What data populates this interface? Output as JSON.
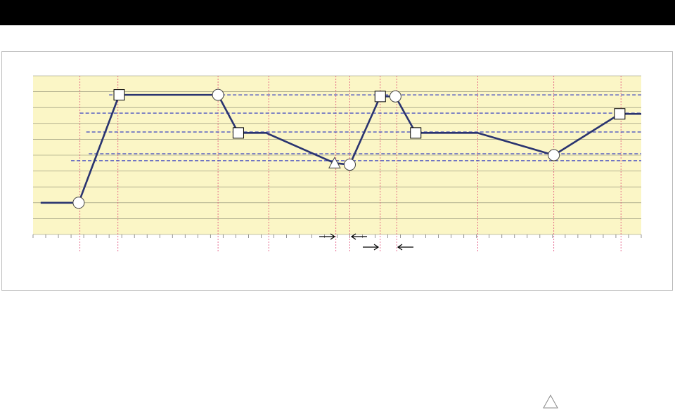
{
  "chart_data": {
    "type": "line",
    "x": [
      0.6,
      3.6,
      6.8,
      14.6,
      16.2,
      18.4,
      23.8,
      25.0,
      27.4,
      28.6,
      30.2,
      35.1,
      41.1,
      46.3,
      48
    ],
    "values": [
      2.0,
      2.0,
      8.8,
      8.8,
      6.4,
      6.4,
      4.5,
      4.4,
      8.7,
      8.7,
      6.4,
      6.4,
      5.0,
      7.6,
      7.6
    ],
    "markers": [
      "none",
      "circle",
      "square",
      "circle",
      "square",
      "none",
      "triangle",
      "circle",
      "square",
      "circle",
      "square",
      "none",
      "circle",
      "square",
      "none"
    ],
    "color": "#2a3470",
    "xlim": [
      0,
      48
    ],
    "ylim": [
      0,
      10
    ],
    "xticks": [
      0,
      1,
      2,
      3,
      4,
      5,
      6,
      7,
      8,
      9,
      10,
      11,
      12,
      13,
      14,
      15,
      16,
      17,
      18,
      19,
      20,
      21,
      22,
      23,
      24,
      25,
      26,
      27,
      28,
      29,
      30,
      31,
      32,
      33,
      34,
      35,
      36,
      37,
      38,
      39,
      40,
      41,
      42,
      43,
      44,
      45,
      46,
      47,
      48
    ],
    "yticks": [
      0,
      1,
      2,
      3,
      4,
      5,
      6,
      7,
      8,
      9,
      10
    ],
    "grid": true,
    "hlines": [
      {
        "y": 8.8,
        "x0": 6.0
      },
      {
        "y": 7.65,
        "x0": 3.7
      },
      {
        "y": 6.46,
        "x0": 4.2
      },
      {
        "y": 5.09,
        "x0": 4.4
      },
      {
        "y": 4.65,
        "x0": 3.0
      }
    ],
    "hline_color": "#3b44c0",
    "vlines": [
      3.7,
      6.7,
      14.6,
      18.6,
      23.9,
      25.0,
      27.4,
      28.7,
      35.1,
      41.1,
      46.4
    ],
    "vline_color": "#e0507a"
  }
}
